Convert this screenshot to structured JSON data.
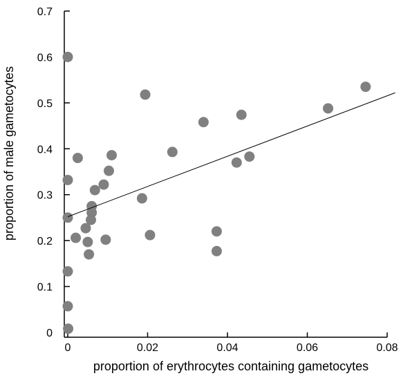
{
  "chart_data": {
    "type": "scatter",
    "xlabel": "proportion  of erythrocytes containing gametocytes",
    "ylabel": "proportion of male gametocytes",
    "xlim": [
      0,
      0.08
    ],
    "ylim": [
      0,
      0.7
    ],
    "x_ticks": [
      0,
      0.02,
      0.04,
      0.06,
      0.08
    ],
    "x_tick_labels": [
      "0",
      "0.02",
      "0.04",
      "0.06",
      "0.08"
    ],
    "y_ticks": [
      0,
      0.1,
      0.2,
      0.3,
      0.4,
      0.5,
      0.6,
      0.7
    ],
    "y_tick_labels": [
      "0",
      "0.1",
      "0.2",
      "0.3",
      "0.4",
      "0.5",
      "0.6",
      "0.7"
    ],
    "grid": false,
    "point_color": "#808080",
    "line_color": "#000000",
    "series": [
      {
        "points": [
          {
            "x": 0.0,
            "y": 0.6
          },
          {
            "x": 0.0,
            "y": 0.332
          },
          {
            "x": 0.0,
            "y": 0.25
          },
          {
            "x": 0.0,
            "y": 0.133
          },
          {
            "x": 0.0,
            "y": 0.057
          },
          {
            "x": 0.0001,
            "y": 0.008
          },
          {
            "x": 0.0025,
            "y": 0.38
          },
          {
            "x": 0.002,
            "y": 0.206
          },
          {
            "x": 0.0045,
            "y": 0.227
          },
          {
            "x": 0.005,
            "y": 0.197
          },
          {
            "x": 0.0053,
            "y": 0.17
          },
          {
            "x": 0.0058,
            "y": 0.245
          },
          {
            "x": 0.006,
            "y": 0.261
          },
          {
            "x": 0.006,
            "y": 0.275
          },
          {
            "x": 0.0068,
            "y": 0.31
          },
          {
            "x": 0.009,
            "y": 0.322
          },
          {
            "x": 0.0095,
            "y": 0.202
          },
          {
            "x": 0.0103,
            "y": 0.352
          },
          {
            "x": 0.011,
            "y": 0.386
          },
          {
            "x": 0.0186,
            "y": 0.292
          },
          {
            "x": 0.0194,
            "y": 0.518
          },
          {
            "x": 0.0206,
            "y": 0.212
          },
          {
            "x": 0.0262,
            "y": 0.393
          },
          {
            "x": 0.034,
            "y": 0.458
          },
          {
            "x": 0.0373,
            "y": 0.22
          },
          {
            "x": 0.0373,
            "y": 0.177
          },
          {
            "x": 0.0423,
            "y": 0.37
          },
          {
            "x": 0.0435,
            "y": 0.474
          },
          {
            "x": 0.0455,
            "y": 0.383
          },
          {
            "x": 0.0652,
            "y": 0.488
          },
          {
            "x": 0.0746,
            "y": 0.535
          }
        ]
      }
    ],
    "trendline": {
      "x": [
        0,
        0.082
      ],
      "y": [
        0.252,
        0.522
      ]
    }
  }
}
